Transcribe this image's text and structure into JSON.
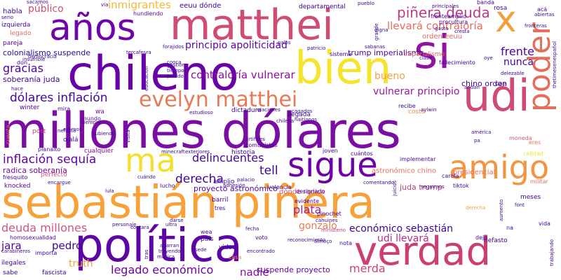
{
  "words": [
    {
      "text": "sebastián piñera",
      "color": "#f6a13a"
    },
    {
      "text": "millones dólares",
      "color": "#7a0ea3"
    },
    {
      "text": "política",
      "color": "#5e05a6"
    },
    {
      "text": "verdad",
      "color": "#cc3f75"
    },
    {
      "text": "matthei",
      "color": "#d04d71"
    },
    {
      "text": "chileno",
      "color": "#6a03a7"
    },
    {
      "text": "años",
      "color": "#6f04a8"
    },
    {
      "text": "bien",
      "color": "#f5e42b"
    },
    {
      "text": "si",
      "color": "#9213a2"
    },
    {
      "text": "udi",
      "color": "#cf4a74"
    },
    {
      "text": "sigue",
      "color": "#6c02a8"
    },
    {
      "text": "amigo",
      "color": "#f39440"
    },
    {
      "text": "poder",
      "color": "#e36f5a"
    },
    {
      "text": "x",
      "color": "#f2a03c"
    },
    {
      "text": "ma",
      "color": "#f5df2c"
    },
    {
      "text": "evelyn matthei",
      "color": "#e57b55"
    },
    {
      "text": "piñera deuda",
      "color": "#c03a83"
    },
    {
      "text": "dólares inflación",
      "color": "#3f04a1"
    },
    {
      "text": "inflación sequía",
      "color": "#5d02a6"
    },
    {
      "text": "delincuentes",
      "color": "#4605a0"
    },
    {
      "text": "derecha",
      "color": "#3b049a"
    },
    {
      "text": "tell",
      "color": "#3b049a"
    },
    {
      "text": "gracias",
      "color": "#4a03a2"
    },
    {
      "text": "frente",
      "color": "#4c02a1"
    },
    {
      "text": "nunca",
      "color": "#4002a0"
    },
    {
      "text": "llevará contraloría",
      "color": "#e66c5c"
    },
    {
      "text": "contraloría vulnerar",
      "color": "#8c0fa5"
    },
    {
      "text": "principio apoliticidad",
      "color": "#5b02a6"
    },
    {
      "text": "vulnerar principio",
      "color": "#9b189f"
    },
    {
      "text": "bueno",
      "color": "#f5a03c"
    },
    {
      "text": "público",
      "color": "#d04f6f"
    },
    {
      "text": "inmigrantes",
      "color": "#f5b931"
    },
    {
      "text": "deuda millones",
      "color": "#d7557b"
    },
    {
      "text": "plata",
      "color": "#a0229b"
    },
    {
      "text": "económico sebastián",
      "color": "#3b049a"
    },
    {
      "text": "udi llevará",
      "color": "#b62d8c"
    },
    {
      "text": "gonzalo",
      "color": "#e97b57"
    },
    {
      "text": "legado económico",
      "color": "#6f03a8"
    },
    {
      "text": "nadie",
      "color": "#8b0da5"
    },
    {
      "text": "pedro",
      "color": "#3b049a"
    },
    {
      "text": "jara",
      "color": "#52039f"
    },
    {
      "text": "truth",
      "color": "#f2a23b"
    },
    {
      "text": "merda",
      "color": "#cd4579"
    },
    {
      "text": "colonialismo suspende",
      "color": "#2b0898"
    },
    {
      "text": "soberanía juda",
      "color": "#3d049c"
    },
    {
      "text": "trump imperialismo",
      "color": "#4b03a0"
    },
    {
      "text": "chino orden",
      "color": "#3c049c"
    },
    {
      "text": "suspende proyecto",
      "color": "#6203a6"
    },
    {
      "text": "juda trump",
      "color": "#c23f7d"
    },
    {
      "text": "proyecto astronómico",
      "color": "#5602a5"
    },
    {
      "text": "astronómico chino",
      "color": "#e8715a"
    },
    {
      "text": "presidencial",
      "color": "#e8715a"
    },
    {
      "text": "radica soberanía",
      "color": "#7b0aa6"
    },
    {
      "text": "dónde radica",
      "color": "#d7527a"
    },
    {
      "text": "eeuu dónde",
      "color": "#3b049a"
    },
    {
      "text": "departamental",
      "color": "#3b049a"
    },
    {
      "text": "orden eeuu",
      "color": "#e2675f"
    },
    {
      "text": "imperialismo",
      "color": "#e36b5c"
    },
    {
      "text": "hundiendo",
      "color": "#5b02a6"
    },
    {
      "text": "izquierda",
      "color": "#3b049a"
    },
    {
      "text": "habla",
      "color": "#3b049a"
    },
    {
      "text": "legado",
      "color": "#e06a62"
    },
    {
      "text": "pareja",
      "color": "#5602a5"
    },
    {
      "text": "winter",
      "color": "#5a02a6"
    },
    {
      "text": "mundo",
      "color": "#5a02a6"
    },
    {
      "text": "mira",
      "color": "#4c02a1"
    },
    {
      "text": "wa",
      "color": "#7a0aa6"
    },
    {
      "text": "post",
      "color": "#c93b84"
    },
    {
      "text": "ojalá",
      "color": "#3b049a"
    },
    {
      "text": "cualquier",
      "color": "#8c0fa5"
    },
    {
      "text": "planalto",
      "color": "#4002a0"
    },
    {
      "text": "cuenta",
      "color": "#e36f5a"
    },
    {
      "text": "knocked",
      "color": "#6a03a7"
    },
    {
      "text": "perfecto",
      "color": "#d7557b"
    },
    {
      "text": "fresquito",
      "color": "#3b049a"
    },
    {
      "text": "ministerio",
      "color": "#c33a86"
    },
    {
      "text": "homosexualidad",
      "color": "#5602a5"
    },
    {
      "text": "importa",
      "color": "#3b049a"
    },
    {
      "text": "ilegales",
      "color": "#3b049a"
    },
    {
      "text": "fascista",
      "color": "#3b049a"
    },
    {
      "text": "sabe",
      "color": "#3b049a"
    },
    {
      "text": "dictadura",
      "color": "#3b049a"
    },
    {
      "text": "comunistas",
      "color": "#3b049a"
    },
    {
      "text": "historia",
      "color": "#3b049a"
    },
    {
      "text": "joven",
      "color": "#3b049a"
    },
    {
      "text": "implementar",
      "color": "#3b049a"
    },
    {
      "text": "cuántos",
      "color": "#3b049a"
    },
    {
      "text": "moneda",
      "color": "#d15e6e"
    },
    {
      "text": "llegada",
      "color": "#3b049a"
    },
    {
      "text": "valencia",
      "color": "#3b049a"
    },
    {
      "text": "evidente",
      "color": "#3b049a"
    },
    {
      "text": "designado",
      "color": "#3b049a"
    },
    {
      "text": "pinochet",
      "color": "#3b049a"
    },
    {
      "text": "cahuines",
      "color": "#3b049a"
    },
    {
      "text": "amplio",
      "color": "#3b049a"
    },
    {
      "text": "lucho",
      "color": "#3b049a"
    },
    {
      "text": "barril",
      "color": "#3b049a"
    },
    {
      "text": "tres",
      "color": "#3b049a"
    },
    {
      "text": "contara",
      "color": "#3b049a"
    },
    {
      "text": "ultra",
      "color": "#3b049a"
    },
    {
      "text": "país",
      "color": "#3b049a"
    },
    {
      "text": "video",
      "color": "#3b049a"
    },
    {
      "text": "casa",
      "color": "#e8915a"
    },
    {
      "text": "voto",
      "color": "#3b049a"
    },
    {
      "text": "nota",
      "color": "#3b049a"
    },
    {
      "text": "dejo",
      "color": "#3b049a"
    },
    {
      "text": "nefasto",
      "color": "#3b049a"
    },
    {
      "text": "meses",
      "color": "#3b049a"
    },
    {
      "text": "font",
      "color": "#3b049a"
    },
    {
      "text": "costo",
      "color": "#e8915a"
    },
    {
      "text": "recibe",
      "color": "#3b049a"
    },
    {
      "text": "tiktok",
      "color": "#3b049a"
    },
    {
      "text": "carola",
      "color": "#3b049a"
    },
    {
      "text": "fallecimiento",
      "color": "#3b049a"
    },
    {
      "text": "sistema",
      "color": "#3b049a"
    },
    {
      "text": "frenteamplio",
      "color": "#3b049a"
    },
    {
      "text": "procultura",
      "color": "#3b049a"
    },
    {
      "text": "rosa",
      "color": "#3b049a"
    },
    {
      "text": "banda",
      "color": "#3b049a"
    },
    {
      "text": "gasto",
      "color": "#3b049a"
    },
    {
      "text": "cae",
      "color": "#3b049a"
    },
    {
      "text": "andan",
      "color": "#3b049a"
    },
    {
      "text": "vida",
      "color": "#3b049a"
    },
    {
      "text": "na",
      "color": "#3b049a"
    },
    {
      "text": "derecha",
      "color": "#f2a23b"
    },
    {
      "text": "eres",
      "color": "#e8715a"
    },
    {
      "text": "militar",
      "color": "#e8715a"
    },
    {
      "text": "calidad",
      "color": "#f5e42b"
    },
    {
      "text": "acá",
      "color": "#3b049a"
    },
    {
      "text": "abiertas",
      "color": "#3b049a"
    },
    {
      "text": "fronteras",
      "color": "#3b049a"
    },
    {
      "text": "sacamos",
      "color": "#3b049a"
    },
    {
      "text": "vía",
      "color": "#3b049a"
    },
    {
      "text": "pueblo",
      "color": "#3b049a"
    },
    {
      "text": "principales",
      "color": "#3b049a"
    },
    {
      "text": "tercafesra",
      "color": "#3b049a"
    },
    {
      "text": "forajidos",
      "color": "#3b049a"
    },
    {
      "text": "palos",
      "color": "#3b049a"
    },
    {
      "text": "patricio",
      "color": "#3b049a"
    },
    {
      "text": "sabanas",
      "color": "#3b049a"
    },
    {
      "text": "clase",
      "color": "#3b049a"
    },
    {
      "text": "oye",
      "color": "#3b049a"
    },
    {
      "text": "relaciones",
      "color": "#3b049a"
    },
    {
      "text": "cagados",
      "color": "#3b049a"
    },
    {
      "text": "estudioso",
      "color": "#3b049a"
    },
    {
      "text": "aylwin",
      "color": "#3b049a"
    },
    {
      "text": "artifices",
      "color": "#3b049a"
    },
    {
      "text": "exteriores",
      "color": "#3b049a"
    },
    {
      "text": "minecraft",
      "color": "#3b049a"
    },
    {
      "text": "cuándo",
      "color": "#3b049a"
    },
    {
      "text": "palacio",
      "color": "#3b049a"
    },
    {
      "text": "adhesión",
      "color": "#3b049a"
    },
    {
      "text": "comentando",
      "color": "#3b049a"
    },
    {
      "text": "seguimos",
      "color": "#3b049a"
    },
    {
      "text": "juicios",
      "color": "#3b049a"
    },
    {
      "text": "encargue",
      "color": "#3b049a"
    },
    {
      "text": "lula",
      "color": "#3b049a"
    },
    {
      "text": "personaje",
      "color": "#3b049a"
    },
    {
      "text": "darse",
      "color": "#3b049a"
    },
    {
      "text": "tras",
      "color": "#3b049a"
    },
    {
      "text": "trayendo",
      "color": "#3b049a"
    },
    {
      "text": "agarran",
      "color": "#3b049a"
    },
    {
      "text": "musica",
      "color": "#3b049a"
    },
    {
      "text": "encontrado",
      "color": "#3b049a"
    },
    {
      "text": "reconocimiento",
      "color": "#3b049a"
    },
    {
      "text": "almoço",
      "color": "#3b049a"
    },
    {
      "text": "sede",
      "color": "#3b049a"
    },
    {
      "text": "fecha",
      "color": "#3b049a"
    },
    {
      "text": "trabajando",
      "color": "#3b049a"
    },
    {
      "text": "carabineros",
      "color": "#3b049a"
    },
    {
      "text": "eternos",
      "color": "#3b049a"
    },
    {
      "text": "siempre",
      "color": "#3b049a"
    },
    {
      "text": "subiendo",
      "color": "#3b049a"
    },
    {
      "text": "nefasta",
      "color": "#3b049a"
    },
    {
      "text": "visita",
      "color": "#3b049a"
    },
    {
      "text": "haitianos",
      "color": "#3b049a"
    },
    {
      "text": "chilena",
      "color": "#3b049a"
    },
    {
      "text": "américa",
      "color": "#3b049a"
    },
    {
      "text": "aumento",
      "color": "#3b049a"
    },
    {
      "text": "thetimesenespañol",
      "color": "#3b049a"
    },
    {
      "text": "delezable",
      "color": "#3b049a"
    },
    {
      "text": "cresta",
      "color": "#3b049a"
    },
    {
      "text": "hace",
      "color": "#3b049a"
    },
    {
      "text": "insufrible",
      "color": "#3b049a"
    },
    {
      "text": "grande",
      "color": "#3b049a"
    },
    {
      "text": "digna",
      "color": "#3b049a"
    },
    {
      "text": "podido",
      "color": "#3b049a"
    },
    {
      "text": "tiempo",
      "color": "#3b049a"
    },
    {
      "text": "gestión",
      "color": "#3b049a"
    },
    {
      "text": "educación",
      "color": "#3b049a"
    },
    {
      "text": "cooca",
      "color": "#3b049a"
    },
    {
      "text": "pa",
      "color": "#3b049a"
    },
    {
      "text": "wea",
      "color": "#3b049a"
    },
    {
      "text": "serio",
      "color": "#3b049a"
    },
    {
      "text": "democracia",
      "color": "#3b049a"
    },
    {
      "text": "don",
      "color": "#3b049a"
    }
  ]
}
